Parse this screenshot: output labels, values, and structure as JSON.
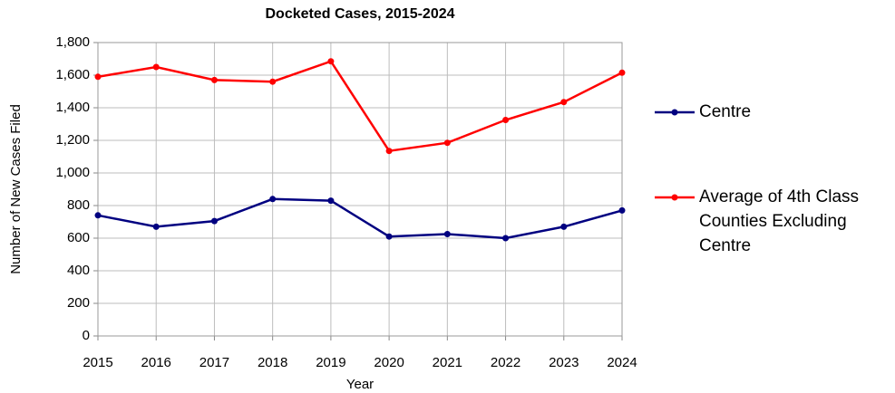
{
  "chart_data": {
    "type": "line",
    "title": "Docketed Cases, 2015-2024",
    "x_label": "Year",
    "y_label": "Number of New Cases Filed",
    "x": [
      2015,
      2016,
      2017,
      2018,
      2019,
      2020,
      2021,
      2022,
      2023,
      2024
    ],
    "xlim": [
      2015,
      2024
    ],
    "xticks": [
      2015,
      2016,
      2017,
      2018,
      2019,
      2020,
      2021,
      2022,
      2023,
      2024
    ],
    "ylim": [
      0,
      1800
    ],
    "yticks": [
      0,
      200,
      400,
      600,
      800,
      {
        "value": 1000,
        "label": "1,000"
      },
      {
        "value": 1200,
        "label": "1,200"
      },
      {
        "value": 1400,
        "label": "1,400"
      },
      {
        "value": 1600,
        "label": "1,600"
      },
      {
        "value": 1800,
        "label": "1,800"
      }
    ],
    "grid": true,
    "legend": "right",
    "series": [
      {
        "name": "Centre",
        "color": "#000080",
        "values": [
          740,
          670,
          705,
          840,
          830,
          610,
          625,
          600,
          670,
          770
        ]
      },
      {
        "name": "Average of 4th Class Counties Excluding Centre",
        "color": "#ff0000",
        "values": [
          1590,
          1650,
          1570,
          1560,
          1685,
          1135,
          1185,
          1325,
          1435,
          1615
        ]
      }
    ]
  }
}
